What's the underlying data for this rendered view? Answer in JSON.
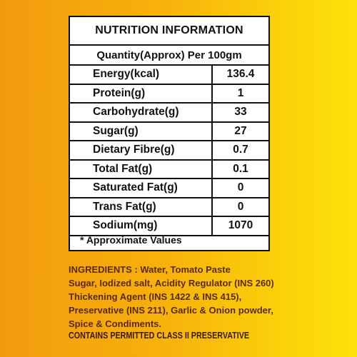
{
  "nutrition_table": {
    "title": "NUTRITION INFORMATION",
    "subtitle": "Quantity(Approx) Per 100gm",
    "rows": [
      {
        "name": "Energy(kcal)",
        "value": "136.4"
      },
      {
        "name": "Protein(g)",
        "value": "1"
      },
      {
        "name": "Carbohydrate(g)",
        "value": "33"
      },
      {
        "name": "Sugar(g)",
        "value": "27"
      },
      {
        "name": "Dietary Fibre(g)",
        "value": "0.7"
      },
      {
        "name": "Total Fat(g)",
        "value": "0.1"
      },
      {
        "name": "Saturated Fat(g)",
        "value": "0"
      },
      {
        "name": "Trans Fat(g)",
        "value": "0"
      },
      {
        "name": "Sodium(mg)",
        "value": "1070"
      }
    ],
    "footnote": "* Approximate Values"
  },
  "ingredients": {
    "lines": [
      "INGREDIENTS : Water, Tomato Paste",
      "Sugar, Iodized salt, Acidity Regulator (INS 260)",
      "Thickening Agent (INS 1422 & INS 415),",
      "Preservative (INS 211), Garlic & Onion powder,",
      "Spice & Condiments."
    ],
    "contains": "CONTAINS PERMITTED CLASS II PRESERVATIVE"
  },
  "colors": {
    "background_left": "#f29a0e",
    "background_right": "#fde10a",
    "ingredients_text": "#5a2a0c"
  }
}
